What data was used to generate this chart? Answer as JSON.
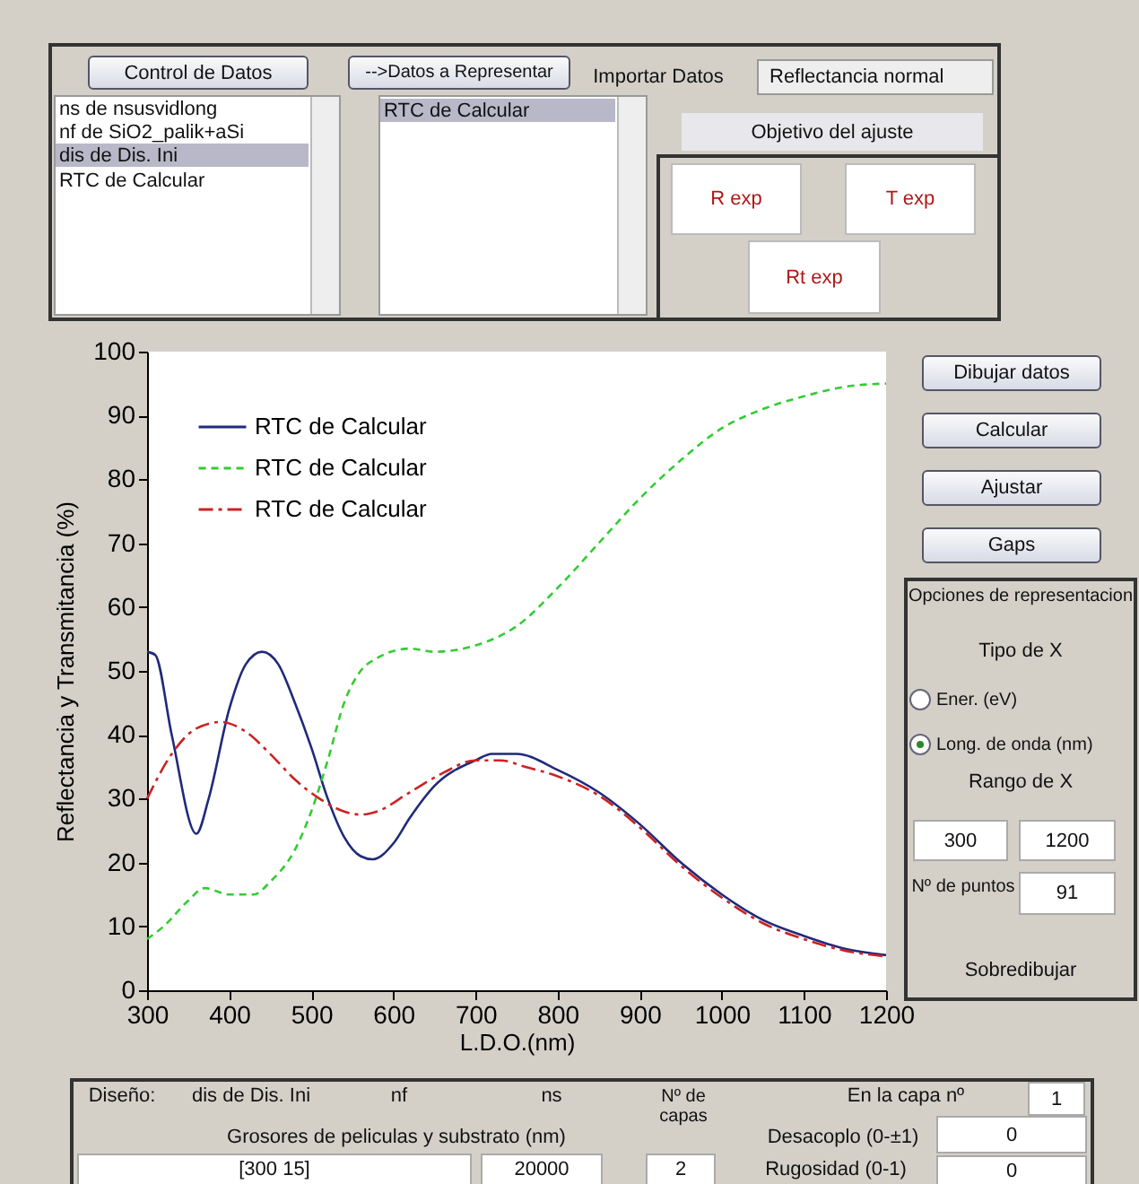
{
  "chart_data": {
    "type": "line",
    "xlabel": "L.D.O.(nm)",
    "ylabel": "Reflectancia y Transmitancia (%)",
    "xlim": [
      300,
      1200
    ],
    "xticks": [
      300,
      400,
      500,
      600,
      700,
      800,
      900,
      1000,
      1100,
      1200
    ],
    "ylim": [
      0,
      100
    ],
    "yticks": [
      0,
      10,
      20,
      30,
      40,
      50,
      60,
      70,
      80,
      90,
      100
    ],
    "grid": false,
    "legend": "top left",
    "marker": "none",
    "x": [
      300,
      310,
      330,
      360,
      375,
      400,
      420,
      440,
      460,
      480,
      500,
      520,
      540,
      560,
      575,
      600,
      620,
      650,
      700,
      720,
      750,
      800,
      850,
      900,
      950,
      1000,
      1050,
      1100,
      1150,
      1200
    ],
    "series": [
      {
        "name": "RTC  de  Calcular",
        "color": "#1f2a7a",
        "line_style": "solid",
        "values": [
          53,
          52.5,
          40,
          24.5,
          30,
          44,
          51,
          53,
          51,
          45,
          38,
          30,
          24,
          21,
          20.5,
          23,
          27,
          32,
          36,
          37,
          37,
          34.5,
          31,
          26,
          20,
          15,
          11,
          8.5,
          6.5,
          5.5
        ]
      },
      {
        "name": "RTC  de  Calcular",
        "color": "#33cc33",
        "line_style": "dashed",
        "x": [
          300,
          320,
          350,
          370,
          400,
          430,
          450,
          480,
          500,
          520,
          540,
          560,
          580,
          620,
          650,
          700,
          750,
          800,
          850,
          900,
          950,
          1000,
          1050,
          1100,
          1150,
          1200
        ],
        "values": [
          8,
          10,
          14,
          16,
          15,
          15,
          17,
          22,
          28,
          36,
          45,
          50,
          52,
          53.5,
          53,
          54,
          57,
          63,
          70,
          77,
          83,
          88,
          91,
          93,
          94.5,
          95
        ]
      },
      {
        "name": "RTC  de  Calcular",
        "color": "#cc2222",
        "line_style": "dashdot",
        "x": [
          300,
          330,
          360,
          390,
          420,
          450,
          480,
          510,
          540,
          560,
          580,
          620,
          660,
          700,
          730,
          760,
          800,
          850,
          900,
          950,
          1000,
          1050,
          1100,
          1150,
          1200
        ],
        "values": [
          30,
          37,
          41,
          42,
          40.5,
          37,
          33,
          30,
          28,
          27.5,
          28,
          31,
          34,
          36,
          36,
          35,
          33.5,
          30.5,
          25.5,
          19.5,
          14.5,
          10.5,
          8,
          6.2,
          5.3
        ]
      }
    ],
    "annotations": [
      "Control de Datos",
      "-->Datos a Representar",
      "Importar Datos",
      "Reflectancia normal",
      "ns  de  nsusvidlong",
      "nf  de  SiO2_palik+aSi",
      "dis  de  Dis. Ini",
      "RTC  de  Calcular",
      "RTC  de  Calcular",
      "Objetivo del ajuste",
      "R exp",
      "T exp",
      "Rt exp",
      "Dibujar datos",
      "Calcular",
      "Ajustar",
      "Gaps",
      "Opciones de representacion",
      "Tipo de X",
      "Ener. (eV)",
      "Long. de onda (nm)",
      "Rango de X",
      "300",
      "1200",
      "Nº de puntos",
      "91",
      "Sobredibujar",
      "Diseño:",
      "dis  de  Dis. Ini",
      "nf",
      "ns",
      "Nº de capas",
      "En la capa nº",
      "1",
      "Grosores de peliculas y substrato (nm)",
      "Desacoplo (0-±1)",
      "0",
      "[300 15]",
      "20000",
      "2",
      "Rugosidad (0-1)",
      "0"
    ]
  }
}
